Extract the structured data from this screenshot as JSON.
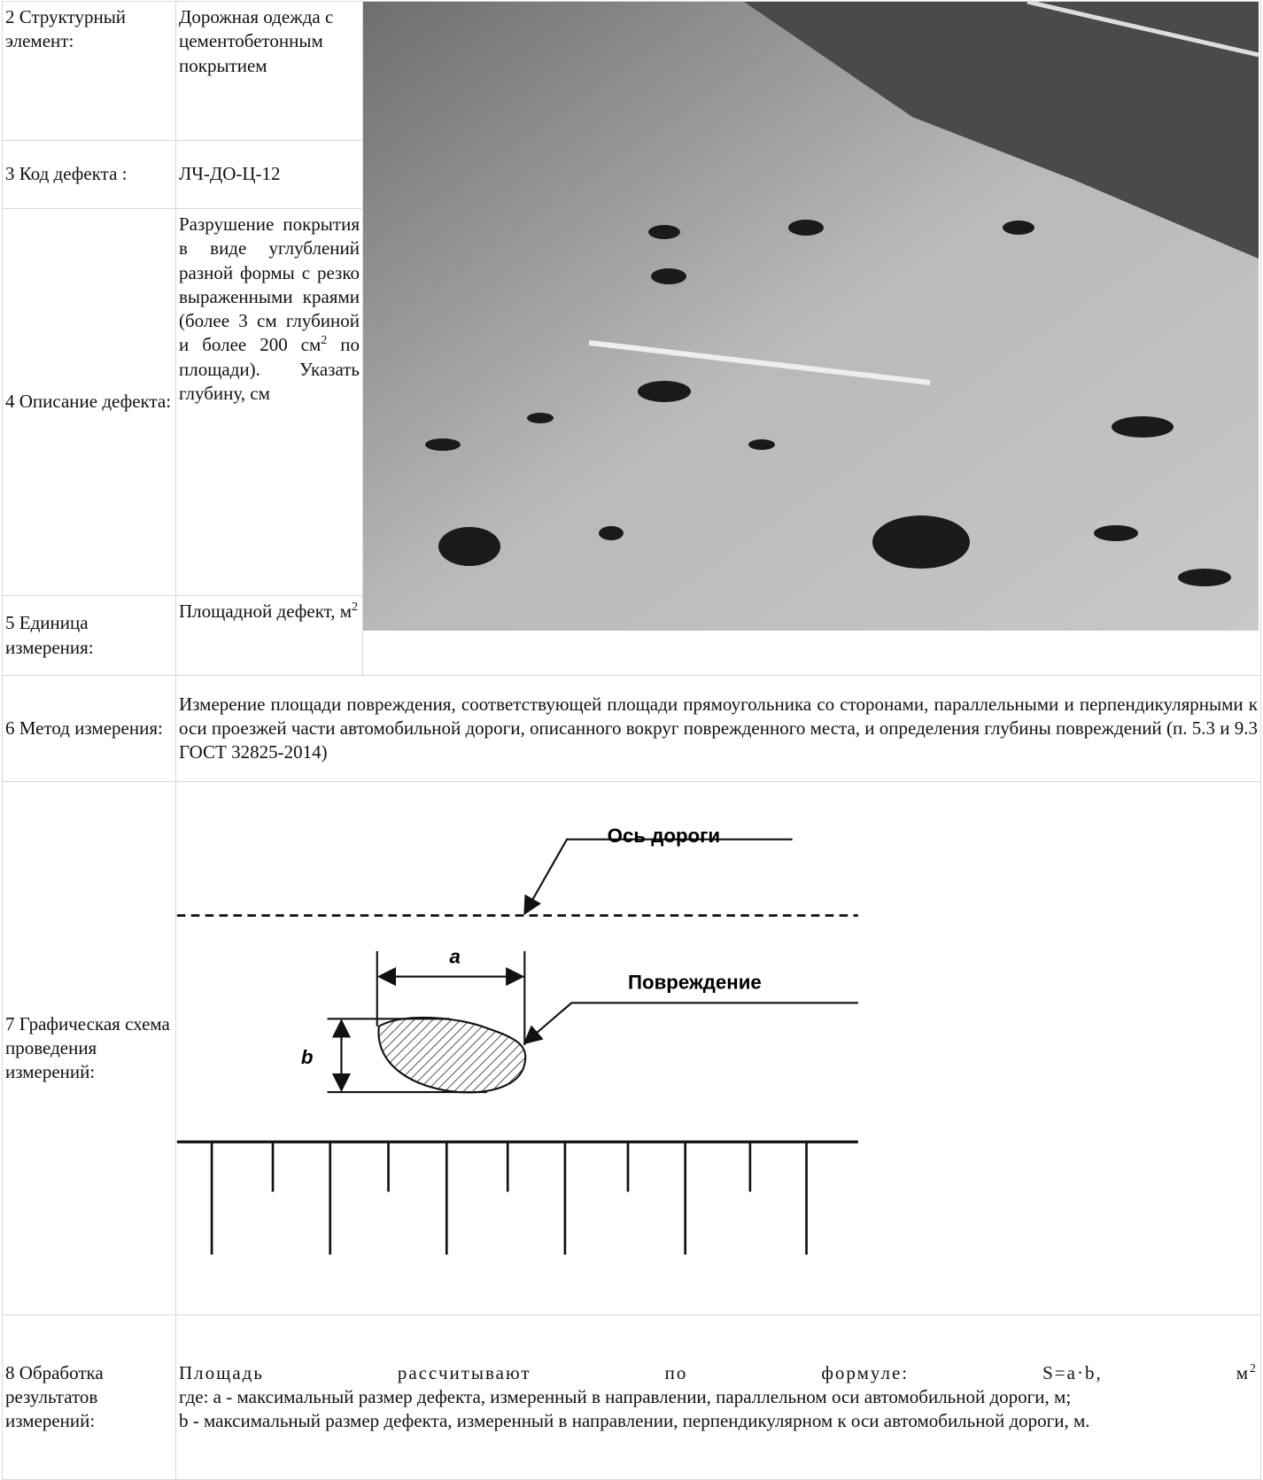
{
  "rows": [
    {
      "label": "2 Структурный элемент:",
      "value": "Дорожная одежда с цементобетонным покрытием"
    },
    {
      "label": "3 Код дефекта :",
      "value": "ЛЧ-ДО-Ц-12"
    },
    {
      "label": "4 Описание дефекта:",
      "value": [
        "Разрушение покрытия в виде углублений разной формы с резко выраженными краями (более 3 см глубиной и более 200 см",
        "2",
        " по площади). Указать глубину, см"
      ]
    },
    {
      "label": "5 Единица измерения:",
      "value": [
        "Площадной дефект, м",
        "2"
      ]
    },
    {
      "label": "6 Метод измерения:",
      "value": "Измерение площади повреждения, соответствующей площади прямоугольника со сторонами, параллельными и перпендикулярными к оси проезжей части автомобильной дороги, описанного вокруг поврежденного места, и определения глубины повреждений (п. 5.3 и 9.3 ГОСТ 32825-2014)"
    },
    {
      "label": "7 Графическая схема проведения измерений:",
      "diagram": {
        "axis": "Ось дороги",
        "damage": "Повреждение",
        "a": "a",
        "b": "b"
      }
    },
    {
      "label": "8 Обработка результатов измерений:",
      "value": [
        "Площадь рассчитывают по формуле: S=a·b, м",
        "2",
        "где: а - максимальный размер дефекта, измеренный в направлении, параллельном оси автомобильной дороги, м;",
        "b - максимальный размер дефекта, измеренный в направлении, перпендикулярном к оси автомобильной дороги, м."
      ]
    }
  ]
}
